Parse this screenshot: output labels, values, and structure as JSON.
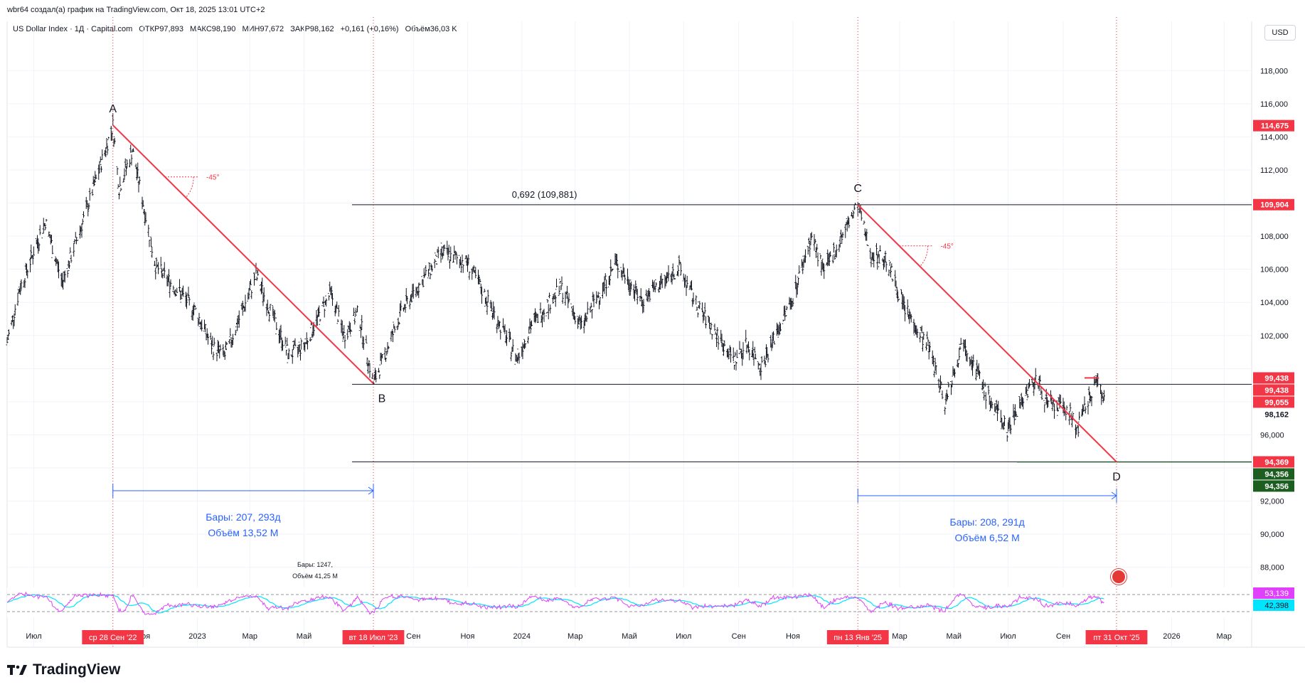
{
  "header": {
    "caption": "wbr64 создал(а) график на TradingView.com, Окт 18, 2025 13:01 UTC+2",
    "symbol": "US Dollar Index · 1Д · Capital.com",
    "open": "ОТКР97,893",
    "high": "МАКС98,190",
    "low": "МИН97,672",
    "close": "ЗАКР98,162",
    "change": "+0,161 (+0,16%)",
    "volume": "Объём36,03 K",
    "currency": "USD"
  },
  "brand": {
    "name": "TradingView",
    "logo_icon": "tradingview-logo-icon"
  },
  "chart_data": {
    "type": "line",
    "y_ticks": [
      118,
      116,
      114,
      112,
      110,
      108,
      106,
      104,
      102,
      100,
      98,
      96,
      94,
      92,
      90,
      88
    ],
    "y_tick_labels": [
      "118,000",
      "116,000",
      "114,000",
      "112,000",
      "",
      "108,000",
      "106,000",
      "104,000",
      "102,000",
      "",
      "",
      "96,000",
      "",
      "92,000",
      "90,000",
      "88,000"
    ],
    "ylim": [
      86.7,
      119.6
    ],
    "x_range": [
      "2022-06-01",
      "2026-04-01"
    ],
    "x_ticks": [
      {
        "date": "2022-07-01",
        "label": "Июл"
      },
      {
        "date": "2022-11-01",
        "label": "Ноя"
      },
      {
        "date": "2023-01-01",
        "label": "2023"
      },
      {
        "date": "2023-03-01",
        "label": "Мар"
      },
      {
        "date": "2023-05-01",
        "label": "Май"
      },
      {
        "date": "2023-09-01",
        "label": "Сен"
      },
      {
        "date": "2023-11-01",
        "label": "Ноя"
      },
      {
        "date": "2024-01-01",
        "label": "2024"
      },
      {
        "date": "2024-03-01",
        "label": "Мар"
      },
      {
        "date": "2024-05-01",
        "label": "Май"
      },
      {
        "date": "2024-07-01",
        "label": "Июл"
      },
      {
        "date": "2024-09-01",
        "label": "Сен"
      },
      {
        "date": "2024-11-01",
        "label": "Ноя"
      },
      {
        "date": "2025-03-01",
        "label": "Мар"
      },
      {
        "date": "2025-05-01",
        "label": "Май"
      },
      {
        "date": "2025-07-01",
        "label": "Июл"
      },
      {
        "date": "2025-09-01",
        "label": "Сен"
      },
      {
        "date": "2026-01-01",
        "label": "2026"
      },
      {
        "date": "2026-03-01",
        "label": "Мар"
      }
    ],
    "highlight_dates": [
      {
        "date": "2022-09-28",
        "label": "ср 28 Сен '22"
      },
      {
        "date": "2023-07-18",
        "label": "вт 18 Июл '23"
      },
      {
        "date": "2025-01-13",
        "label": "пн 13 Янв '25"
      },
      {
        "date": "2025-10-31",
        "label": "пт 31 Окт '25"
      }
    ],
    "series": [
      {
        "points": [
          [
            "2022-06-01",
            101.6
          ],
          [
            "2022-06-15",
            104.8
          ],
          [
            "2022-07-14",
            108.9
          ],
          [
            "2022-08-02",
            105.2
          ],
          [
            "2022-08-29",
            109.5
          ],
          [
            "2022-09-28",
            114.7
          ],
          [
            "2022-10-05",
            110.9
          ],
          [
            "2022-10-20",
            113.2
          ],
          [
            "2022-11-15",
            106.2
          ],
          [
            "2022-12-30",
            103.5
          ],
          [
            "2023-01-18",
            101.3
          ],
          [
            "2023-02-01",
            100.8
          ],
          [
            "2023-03-08",
            105.6
          ],
          [
            "2023-04-14",
            100.8
          ],
          [
            "2023-05-01",
            101.4
          ],
          [
            "2023-05-31",
            104.6
          ],
          [
            "2023-06-15",
            102.0
          ],
          [
            "2023-07-01",
            103.4
          ],
          [
            "2023-07-18",
            99.1
          ],
          [
            "2023-08-20",
            103.6
          ],
          [
            "2023-10-03",
            107.0
          ],
          [
            "2023-11-01",
            106.4
          ],
          [
            "2023-12-27",
            100.6
          ],
          [
            "2024-01-10",
            102.5
          ],
          [
            "2024-02-14",
            104.9
          ],
          [
            "2024-03-08",
            102.5
          ],
          [
            "2024-04-16",
            106.4
          ],
          [
            "2024-05-15",
            104.1
          ],
          [
            "2024-06-26",
            106.1
          ],
          [
            "2024-07-15",
            103.9
          ],
          [
            "2024-08-05",
            102.2
          ],
          [
            "2024-08-27",
            100.5
          ],
          [
            "2024-09-10",
            101.5
          ],
          [
            "2024-09-27",
            100.2
          ],
          [
            "2024-10-31",
            104.2
          ],
          [
            "2024-11-22",
            108.0
          ],
          [
            "2024-12-06",
            105.8
          ],
          [
            "2025-01-13",
            109.9
          ],
          [
            "2025-01-27",
            107.0
          ],
          [
            "2025-02-14",
            106.6
          ],
          [
            "2025-03-07",
            103.6
          ],
          [
            "2025-04-03",
            101.3
          ],
          [
            "2025-04-21",
            98.0
          ],
          [
            "2025-05-12",
            101.8
          ],
          [
            "2025-06-05",
            98.6
          ],
          [
            "2025-06-30",
            96.3
          ],
          [
            "2025-07-15",
            98.0
          ],
          [
            "2025-08-01",
            99.4
          ],
          [
            "2025-08-15",
            97.8
          ],
          [
            "2025-09-05",
            97.6
          ],
          [
            "2025-09-17",
            96.4
          ],
          [
            "2025-10-09",
            99.4
          ],
          [
            "2025-10-17",
            98.16
          ]
        ]
      }
    ],
    "price_markers": [
      {
        "value": 114.675,
        "label": "114,675",
        "color": "#f23645"
      },
      {
        "value": 109.904,
        "label": "109,904",
        "color": "#f23645"
      },
      {
        "value": 99.438,
        "label": "99,438",
        "color": "#f23645"
      },
      {
        "value": 99.438,
        "label": "99,438",
        "color": "#f23645"
      },
      {
        "value": 99.055,
        "label": "99,055",
        "color": "#f23645"
      },
      {
        "value": 98.162,
        "label": "98,162",
        "color": "#ffffff"
      },
      {
        "value": 94.369,
        "label": "94,369",
        "color": "#f23645"
      },
      {
        "value": 94.356,
        "label": "94,356",
        "color": "#1b5e20"
      },
      {
        "value": 94.356,
        "label": "94,356",
        "color": "#1b5e20"
      }
    ],
    "pattern_points": [
      {
        "name": "A",
        "date": "2022-09-28",
        "value": 114.7
      },
      {
        "name": "B",
        "date": "2023-07-18",
        "value": 99.1
      },
      {
        "name": "C",
        "date": "2025-01-13",
        "value": 109.9
      },
      {
        "name": "D",
        "date": "2025-10-31",
        "value": 94.37
      }
    ],
    "fib_label": "0,692 (109,881)",
    "angle_label": "-45°",
    "range_ab": {
      "bars": "Бары: 207, 293д",
      "volume": "Объём 13,52 M"
    },
    "range_cd": {
      "bars": "Бары: 208, 291д",
      "volume": "Объём 6,52 M"
    },
    "range_small": {
      "bars": "Бары: 1247,",
      "volume": "Объём 41,25 M"
    },
    "oscillator": {
      "values_labels": [
        "53,139",
        "42,398"
      ],
      "upper": 53.139,
      "lower": 42.398
    }
  },
  "colors": {
    "red": "#f23645",
    "blue": "#2962ff",
    "candle": "#131722",
    "dark_green": "#1b5e20",
    "osc_magenta": "#e040fb",
    "osc_cyan": "#00e5ff"
  }
}
